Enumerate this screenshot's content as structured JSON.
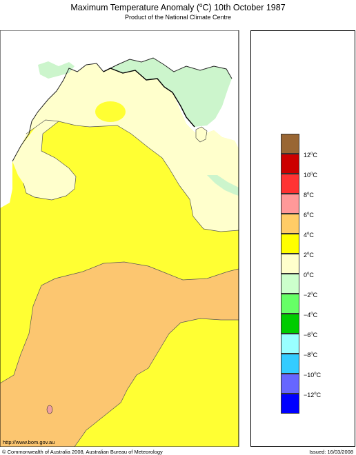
{
  "header": {
    "title_pre": "Maximum Temperature Anomaly (",
    "title_deg": "o",
    "title_post": "C)  10th October 1987",
    "subtitle": "Product of the National Climate Centre"
  },
  "legend": {
    "items": [
      {
        "label": "",
        "color": "#996633"
      },
      {
        "label": "12",
        "color": "#cc0000"
      },
      {
        "label": "10",
        "color": "#ff3333"
      },
      {
        "label": "8",
        "color": "#ff9999"
      },
      {
        "label": "6",
        "color": "#ffcc66"
      },
      {
        "label": "4",
        "color": "#ffff00"
      },
      {
        "label": "2",
        "color": "#ffffcc"
      },
      {
        "label": "0",
        "color": "#ccffcc"
      },
      {
        "label": "-2",
        "color": "#66ff66"
      },
      {
        "label": "-4",
        "color": "#00cc00"
      },
      {
        "label": "-6",
        "color": "#99ffff"
      },
      {
        "label": "-8",
        "color": "#33ccff"
      },
      {
        "label": "-10",
        "color": "#6666ff"
      },
      {
        "label": "-12",
        "color": "#0000ff"
      }
    ],
    "tick_labels": [
      "12",
      "10",
      "8",
      "6",
      "4",
      "2",
      "0",
      "−2",
      "−4",
      "−6",
      "−8",
      "−10",
      "−12"
    ],
    "unit_deg": "o",
    "unit": "C"
  },
  "map": {
    "colors": {
      "yellow": "#ffff33",
      "orange": "#fcc670",
      "cream": "#ffffcc",
      "green": "#ccf5cc",
      "pink": "#f0a0a0"
    }
  },
  "footer": {
    "url": "http://www.bom.gov.au",
    "copyright": "© Commonwealth of Australia 2008, Australian Bureau of Meteorology",
    "issued": "Issued: 16/03/2008"
  }
}
